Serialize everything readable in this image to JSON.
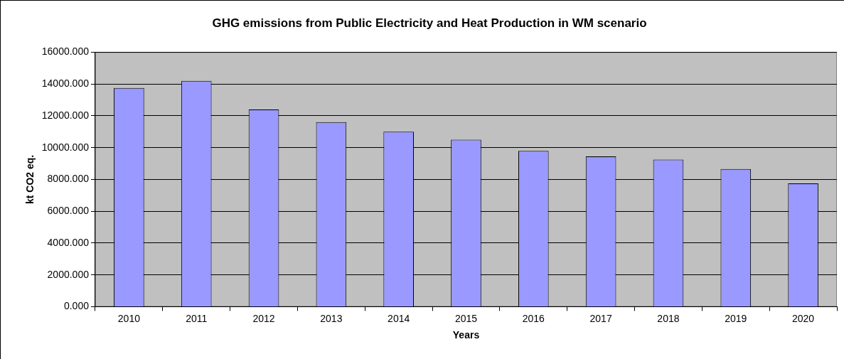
{
  "chart_data": {
    "type": "bar",
    "title": "GHG emissions from Public Electricity and Heat Production in WM scenario",
    "xlabel": "Years",
    "ylabel": "kt CO2 eq.",
    "categories": [
      "2010",
      "2011",
      "2012",
      "2013",
      "2014",
      "2015",
      "2016",
      "2017",
      "2018",
      "2019",
      "2020"
    ],
    "values": [
      13750,
      14200,
      12400,
      11600,
      11000,
      10500,
      9800,
      9450,
      9250,
      8650,
      7750
    ],
    "color": "#9999ff",
    "ylim": [
      0,
      16000
    ],
    "yticks": [
      {
        "value": 0,
        "label": "0.000"
      },
      {
        "value": 2000,
        "label": "2000.000"
      },
      {
        "value": 4000,
        "label": "4000.000"
      },
      {
        "value": 6000,
        "label": "6000.000"
      },
      {
        "value": 8000,
        "label": "8000.000"
      },
      {
        "value": 10000,
        "label": "10000.000"
      },
      {
        "value": 12000,
        "label": "12000.000"
      },
      {
        "value": 14000,
        "label": "14000.000"
      },
      {
        "value": 16000,
        "label": "16000.000"
      }
    ],
    "grid": "y",
    "legend": false
  }
}
